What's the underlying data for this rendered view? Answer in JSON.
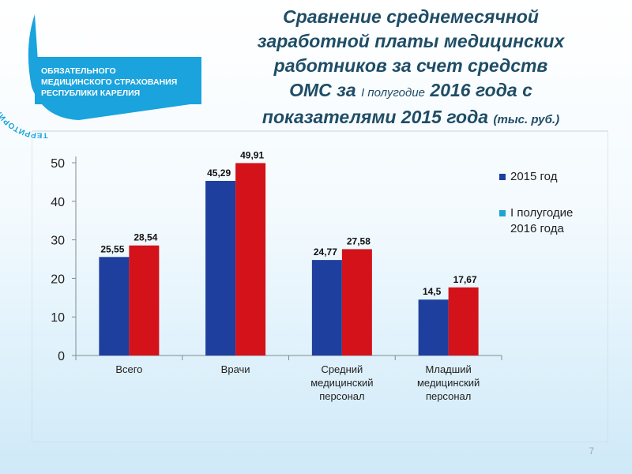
{
  "logo": {
    "arc_text": "ТЕРРИТОРИАЛЬНЫЙ ФОНД",
    "lines": [
      "ОБЯЗАТЕЛЬНОГО",
      "МЕДИЦИНСКОГО СТРАХОВАНИЯ",
      "РЕСПУБЛИКИ КАРЕЛИЯ"
    ],
    "color": "#1aa3dc"
  },
  "title": {
    "line1": "Сравнение среднемесячной",
    "line2": "заработной платы медицинских",
    "line3": "работников за счет средств",
    "line4_a": "ОМС за ",
    "line4_b": "I полугодие",
    "line4_c": " 2016 года с",
    "line5_a": "показателями 2015 года ",
    "line5_b": "(тыс. руб.)"
  },
  "chart_data": {
    "type": "bar",
    "categories": [
      [
        "Всего"
      ],
      [
        "Врачи"
      ],
      [
        "Средний",
        "медицинский",
        "персонал"
      ],
      [
        "Младший",
        "медицинский",
        "персонал"
      ]
    ],
    "series": [
      {
        "name": "2015 год",
        "values": [
          25.55,
          45.29,
          24.77,
          14.5
        ],
        "labels": [
          "25,55",
          "45,29",
          "24,77",
          "14,5"
        ],
        "color": "#1f3f9e"
      },
      {
        "name": "I полугодие 2016 года",
        "values": [
          28.54,
          49.91,
          27.58,
          17.67
        ],
        "labels": [
          "28,54",
          "49,91",
          "27,58",
          "17,67"
        ],
        "color": "#d3121a"
      }
    ],
    "legend_names": [
      [
        "2015 год"
      ],
      [
        "I полугодие",
        "2016 года"
      ]
    ],
    "legend_marker_colors": [
      "#1f3f9e",
      "#1ca6cf"
    ],
    "yticks": [
      "0",
      "10",
      "20",
      "30",
      "40",
      "50"
    ],
    "ylim": [
      0,
      50
    ],
    "legend_position": "right"
  },
  "slide_number": "7"
}
